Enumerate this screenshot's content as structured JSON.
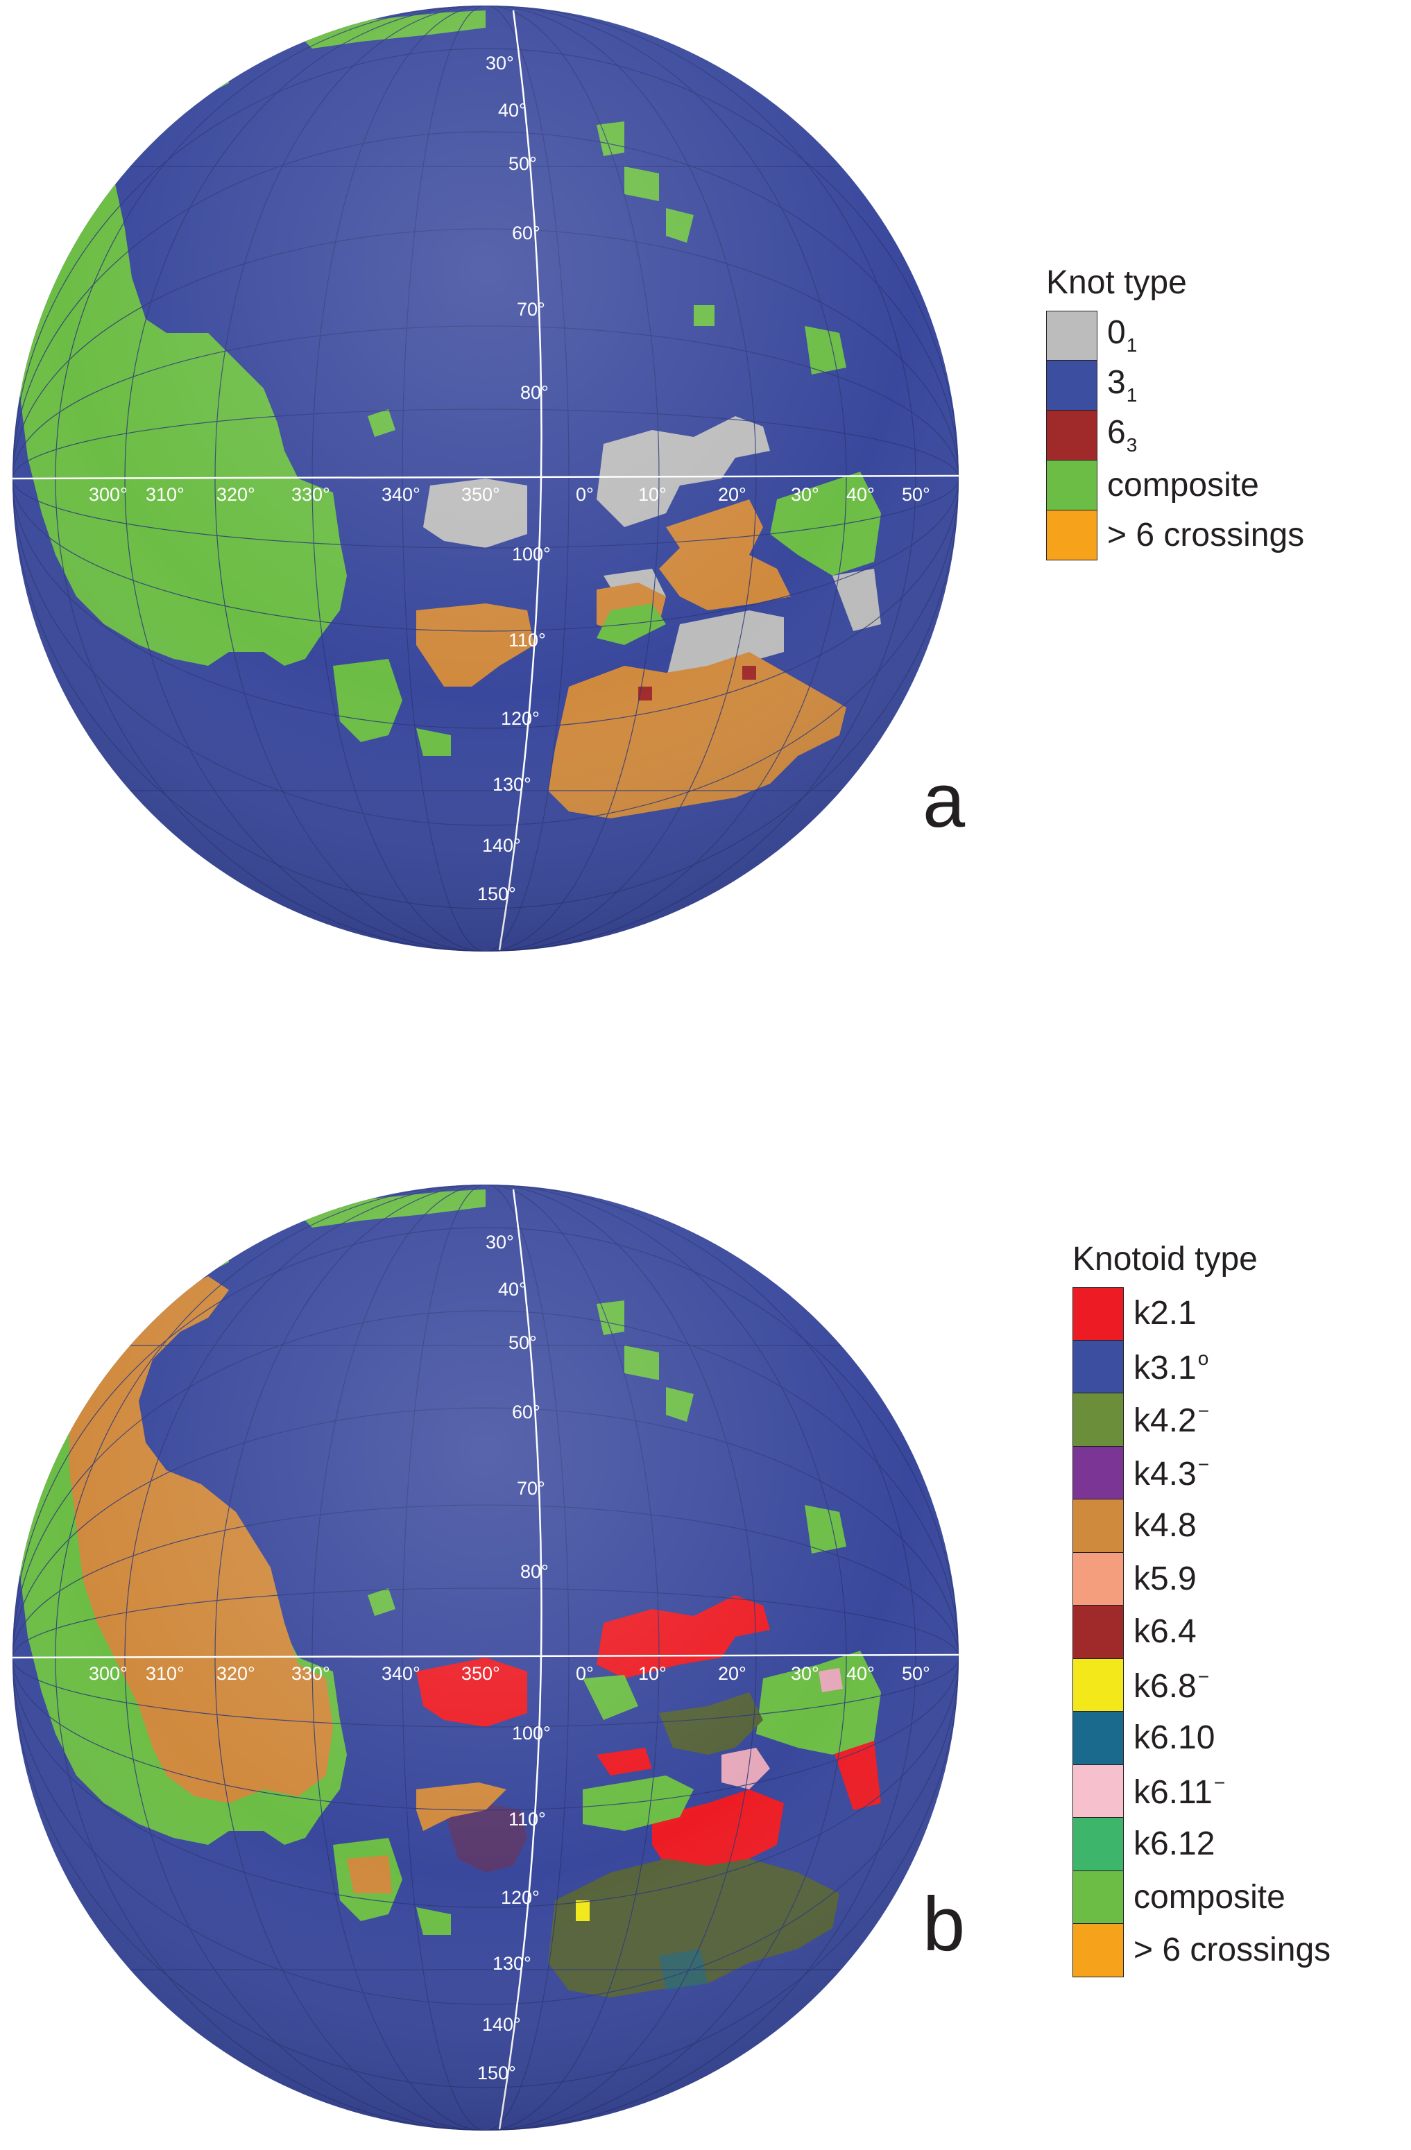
{
  "colors": {
    "ocean": "#39489c",
    "grid": "#2a3679",
    "meridian_line": "#ffffff",
    "label": "#ffffff",
    "text": "#231f20"
  },
  "panel_a": {
    "letter": "a",
    "legend": {
      "title": "Knot type",
      "items": [
        {
          "main": "0",
          "sub": "1",
          "sup": "",
          "color": "#bcbcbc"
        },
        {
          "main": "3",
          "sub": "1",
          "sup": "",
          "color": "#3b4ea0"
        },
        {
          "main": "6",
          "sub": "3",
          "sup": "",
          "color": "#a02a2a"
        },
        {
          "main": "composite",
          "sub": "",
          "sup": "",
          "color": "#6cbd45"
        },
        {
          "main": " > 6 crossings",
          "sub": "",
          "sup": "",
          "color": "#f7a21b"
        }
      ]
    },
    "lat_labels": [
      "30°",
      "40°",
      "50°",
      "60°",
      "70°",
      "80°",
      "100°",
      "110°",
      "120°",
      "130°",
      "140°",
      "150°"
    ],
    "lon_labels": [
      "300°",
      "310°",
      "320°",
      "330°",
      "340°",
      "350°",
      "0°",
      "10°",
      "20°",
      "30°",
      "40°",
      "50°"
    ]
  },
  "panel_b": {
    "letter": "b",
    "legend": {
      "title": "Knotoid type",
      "items": [
        {
          "main": "k2.1",
          "sub": "",
          "sup": "",
          "color": "#ed1c24"
        },
        {
          "main": "k3.1",
          "sub": "",
          "sup": "o",
          "color": "#3b4ea0"
        },
        {
          "main": "k4.2",
          "sub": "",
          "sup": "−",
          "color": "#6b8e3a"
        },
        {
          "main": "k4.3",
          "sub": "",
          "sup": "−",
          "color": "#7b3594"
        },
        {
          "main": "k4.8",
          "sub": "",
          "sup": "",
          "color": "#d08a3e"
        },
        {
          "main": "k5.9",
          "sub": "",
          "sup": "",
          "color": "#f59e7d"
        },
        {
          "main": "k6.4",
          "sub": "",
          "sup": "",
          "color": "#a02a2a"
        },
        {
          "main": "k6.8",
          "sub": "",
          "sup": "−",
          "color": "#f2e81a"
        },
        {
          "main": "k6.10",
          "sub": "",
          "sup": "",
          "color": "#1a6a8e"
        },
        {
          "main": "k6.11",
          "sub": "",
          "sup": "−",
          "color": "#f7c0cd"
        },
        {
          "main": "k6.12",
          "sub": "",
          "sup": "",
          "color": "#3db56a"
        },
        {
          "main": "composite",
          "sub": "",
          "sup": "",
          "color": "#6cbd45"
        },
        {
          "main": "> 6 crossings",
          "sub": "",
          "sup": "",
          "color": "#f7a21b"
        }
      ]
    },
    "lat_labels": [
      "30°",
      "40°",
      "50°",
      "60°",
      "70°",
      "80°",
      "100°",
      "110°",
      "120°",
      "130°",
      "140°",
      "150°"
    ],
    "lon_labels": [
      "300°",
      "310°",
      "320°",
      "330°",
      "340°",
      "350°",
      "0°",
      "10°",
      "20°",
      "30°",
      "40°",
      "50°"
    ]
  }
}
